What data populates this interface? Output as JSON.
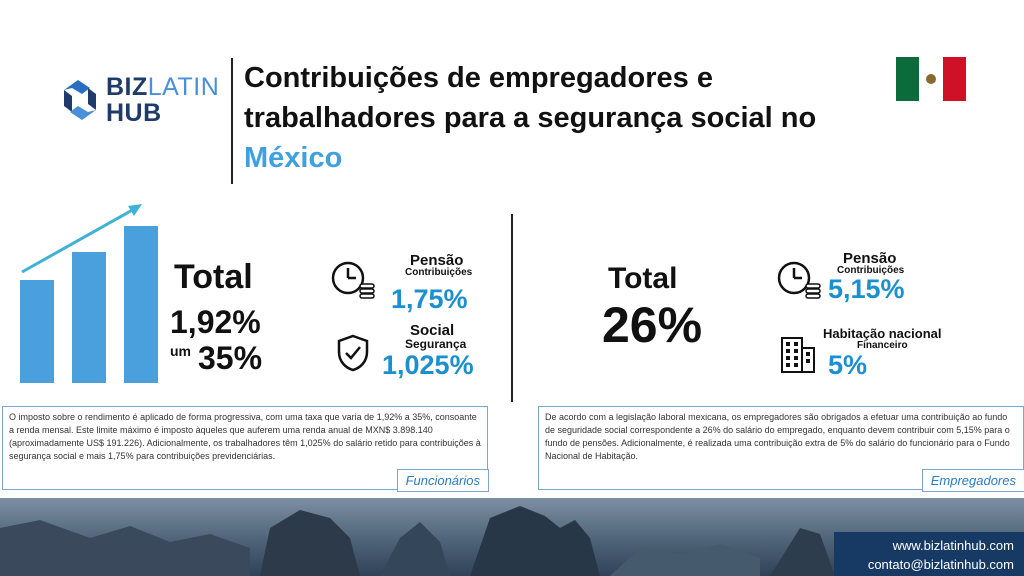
{
  "logo": {
    "line1_bold": "BIZ",
    "line1_light": "LATIN",
    "line2": "HUB"
  },
  "title": {
    "part1": "Contribuições de empregadores e trabalhadores para a segurança social no ",
    "highlight": "México"
  },
  "left": {
    "total_label": "Total",
    "rate_min": "1,92%",
    "rate_connector": "um",
    "rate_max": "35%",
    "pension": {
      "label": "Pensão",
      "sub": "Contribuições",
      "value": "1,75%",
      "icon": "clock-coins-icon"
    },
    "social": {
      "label": "Social",
      "sub": "Segurança",
      "value": "1,025%",
      "icon": "shield-check-icon"
    },
    "description": "O imposto sobre o rendimento é aplicado de forma progressiva, com uma taxa que varia de 1,92% a 35%, consoante a renda mensal. Este limite máximo é imposto àqueles que auferem uma renda anual de MXN$ 3.898.140 (aproximadamente US$ 191.226). Adicionalmente, os trabalhadores têm 1,025% do salário retido para contribuições à segurança social e mais 1,75% para contribuições previdenciárias.",
    "tag": "Funcionários"
  },
  "right": {
    "total_label": "Total",
    "total_value": "26%",
    "pension": {
      "label": "Pensão",
      "sub": "Contribuições",
      "value": "5,15%",
      "icon": "clock-coins-icon"
    },
    "housing": {
      "label": "Habitação nacional",
      "sub": "Financeiro",
      "value": "5%",
      "icon": "building-icon"
    },
    "description": "De acordo com a legislação laboral mexicana, os empregadores são obrigados a efetuar uma contribuição ao fundo de seguridade social correspondente a 26% do salário do empregado, enquanto devem contribuir com 5,15% para o fundo de pensões. Adicionalmente, é realizada uma contribuição extra de 5% do salário do funcionário para o Fundo Nacional de Habitação.",
    "tag": "Empregadores"
  },
  "contact": {
    "website": "www.bizlatinhub.com",
    "email": "contato@bizlatinhub.com"
  },
  "colors": {
    "accent": "#1b8fd0",
    "title_highlight": "#3fa0df",
    "navy": "#163a64",
    "bar_blue": "#4aa0dc"
  }
}
